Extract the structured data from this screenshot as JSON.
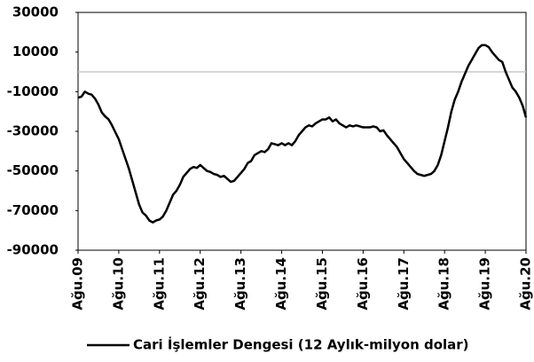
{
  "chart_data": {
    "type": "line",
    "categories": [
      "Ağu.09",
      null,
      null,
      null,
      null,
      null,
      null,
      null,
      null,
      null,
      null,
      null,
      "Ağu.10",
      null,
      null,
      null,
      null,
      null,
      null,
      null,
      null,
      null,
      null,
      null,
      "Ağu.11",
      null,
      null,
      null,
      null,
      null,
      null,
      null,
      null,
      null,
      null,
      null,
      "Ağu.12",
      null,
      null,
      null,
      null,
      null,
      null,
      null,
      null,
      null,
      null,
      null,
      "Ağu.13",
      null,
      null,
      null,
      null,
      null,
      null,
      null,
      null,
      null,
      null,
      null,
      "Ağu.14",
      null,
      null,
      null,
      null,
      null,
      null,
      null,
      null,
      null,
      null,
      null,
      "Ağu.15",
      null,
      null,
      null,
      null,
      null,
      null,
      null,
      null,
      null,
      null,
      null,
      "Ağu.16",
      null,
      null,
      null,
      null,
      null,
      null,
      null,
      null,
      null,
      null,
      null,
      "Ağu.17",
      null,
      null,
      null,
      null,
      null,
      null,
      null,
      null,
      null,
      null,
      null,
      "Ağu.18",
      null,
      null,
      null,
      null,
      null,
      null,
      null,
      null,
      null,
      null,
      null,
      "Ağu.19",
      null,
      null,
      null,
      null,
      null,
      null,
      null,
      null,
      null,
      null,
      null,
      "Ağu.20"
    ],
    "series": [
      {
        "name": "Cari İşlemler Dengesi (12 Aylık-milyon dolar)",
        "color": "#000000",
        "values": [
          -13000,
          -12500,
          -10000,
          -11000,
          -11500,
          -13500,
          -16500,
          -20500,
          -22500,
          -24000,
          -27000,
          -30500,
          -34000,
          -39000,
          -44000,
          -49000,
          -55000,
          -61000,
          -67000,
          -71000,
          -72500,
          -75000,
          -76000,
          -75000,
          -74500,
          -73000,
          -70000,
          -66000,
          -62000,
          -60000,
          -57000,
          -53000,
          -51000,
          -49000,
          -48000,
          -48500,
          -47000,
          -48500,
          -50000,
          -50500,
          -51500,
          -52000,
          -53000,
          -52500,
          -54000,
          -55500,
          -55000,
          -53000,
          -51000,
          -49000,
          -46000,
          -45000,
          -42000,
          -41000,
          -40000,
          -40500,
          -39000,
          -36000,
          -36500,
          -37000,
          -36000,
          -37000,
          -36000,
          -37000,
          -35000,
          -32000,
          -30000,
          -28000,
          -27000,
          -27500,
          -26000,
          -25000,
          -24000,
          -24000,
          -23000,
          -25000,
          -24000,
          -26000,
          -27000,
          -28000,
          -27000,
          -27500,
          -27000,
          -27500,
          -28000,
          -28000,
          -28000,
          -27500,
          -28000,
          -30000,
          -29500,
          -32000,
          -34000,
          -36000,
          -38000,
          -41000,
          -44000,
          -46000,
          -48000,
          -50000,
          -51500,
          -52000,
          -52500,
          -52000,
          -51500,
          -50000,
          -47000,
          -42000,
          -35000,
          -28000,
          -20000,
          -14000,
          -10000,
          -5000,
          -1000,
          3000,
          6000,
          9000,
          12000,
          13500,
          13500,
          12500,
          10000,
          8000,
          6000,
          5000,
          0,
          -4000,
          -8000,
          -10000,
          -13000,
          -17000,
          -23000
        ]
      }
    ],
    "ylim": [
      -90000,
      30000
    ],
    "yticks": [
      30000,
      10000,
      -10000,
      -30000,
      -50000,
      -70000,
      -90000
    ],
    "zero_line_color": "#c8c8c8",
    "legend": "bottom"
  }
}
